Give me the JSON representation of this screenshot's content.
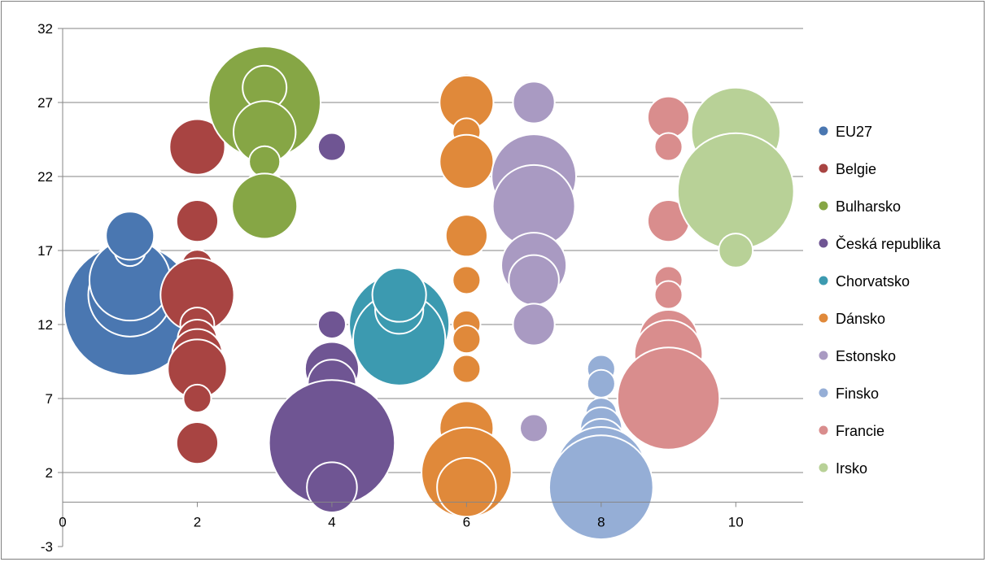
{
  "chart_data": {
    "type": "bubble",
    "xlim": [
      0,
      11
    ],
    "ylim": [
      -3,
      32
    ],
    "x_ticks": [
      0,
      2,
      4,
      6,
      8,
      10
    ],
    "y_ticks": [
      -3,
      2,
      7,
      12,
      17,
      22,
      27,
      32
    ],
    "x_tick_labels": [
      "0",
      "2",
      "4",
      "6",
      "8",
      "10"
    ],
    "y_tick_labels": [
      "-3",
      "2",
      "7",
      "12",
      "17",
      "22",
      "27",
      "32"
    ],
    "horizontal_gridlines": true,
    "legend_position": "right",
    "series": [
      {
        "name": "EU27",
        "color": "#4a77b1",
        "points": [
          {
            "x": 1,
            "y": 13,
            "size": 9.0
          },
          {
            "x": 1,
            "y": 14,
            "size": 3.6
          },
          {
            "x": 1,
            "y": 15,
            "size": 3.4
          },
          {
            "x": 1,
            "y": 17,
            "size": 0.5
          },
          {
            "x": 1,
            "y": 18,
            "size": 1.2
          }
        ]
      },
      {
        "name": "Belgie",
        "color": "#a84442",
        "points": [
          {
            "x": 2,
            "y": 24,
            "size": 1.6
          },
          {
            "x": 2,
            "y": 19,
            "size": 0.9
          },
          {
            "x": 2,
            "y": 16,
            "size": 0.5
          },
          {
            "x": 2,
            "y": 14,
            "size": 2.8
          },
          {
            "x": 2,
            "y": 12,
            "size": 0.6
          },
          {
            "x": 2,
            "y": 11,
            "size": 0.8
          },
          {
            "x": 2,
            "y": 10,
            "size": 1.3
          },
          {
            "x": 2,
            "y": 9,
            "size": 1.8
          },
          {
            "x": 2,
            "y": 7,
            "size": 0.4
          },
          {
            "x": 2,
            "y": 4,
            "size": 0.9
          }
        ]
      },
      {
        "name": "Bulharsko",
        "color": "#86a645",
        "points": [
          {
            "x": 3,
            "y": 27,
            "size": 6.5
          },
          {
            "x": 3,
            "y": 28,
            "size": 1.0
          },
          {
            "x": 3,
            "y": 25,
            "size": 2.0
          },
          {
            "x": 3,
            "y": 23,
            "size": 0.5
          },
          {
            "x": 3,
            "y": 21,
            "size": 0.5
          },
          {
            "x": 3,
            "y": 20,
            "size": 2.2
          }
        ]
      },
      {
        "name": "Česká republika",
        "color": "#6f5593",
        "points": [
          {
            "x": 4,
            "y": 24,
            "size": 0.4
          },
          {
            "x": 4,
            "y": 12,
            "size": 0.4
          },
          {
            "x": 4,
            "y": 9,
            "size": 1.5
          },
          {
            "x": 4,
            "y": 8,
            "size": 1.2
          },
          {
            "x": 4,
            "y": 6,
            "size": 1.0
          },
          {
            "x": 4,
            "y": 4,
            "size": 8.2
          },
          {
            "x": 4,
            "y": 1,
            "size": 1.3
          }
        ]
      },
      {
        "name": "Chorvatsko",
        "color": "#3c9ab0",
        "points": [
          {
            "x": 5,
            "y": 12,
            "size": 5.2
          },
          {
            "x": 5,
            "y": 11,
            "size": 4.4
          },
          {
            "x": 5,
            "y": 13,
            "size": 1.2
          },
          {
            "x": 5,
            "y": 14,
            "size": 1.5
          }
        ]
      },
      {
        "name": "Dánsko",
        "color": "#e0893a",
        "points": [
          {
            "x": 6,
            "y": 28,
            "size": 0.4
          },
          {
            "x": 6,
            "y": 27,
            "size": 1.5
          },
          {
            "x": 6,
            "y": 25,
            "size": 0.4
          },
          {
            "x": 6,
            "y": 23,
            "size": 1.5
          },
          {
            "x": 6,
            "y": 18,
            "size": 0.9
          },
          {
            "x": 6,
            "y": 15,
            "size": 0.4
          },
          {
            "x": 6,
            "y": 12,
            "size": 0.4
          },
          {
            "x": 6,
            "y": 11,
            "size": 0.4
          },
          {
            "x": 6,
            "y": 9,
            "size": 0.4
          },
          {
            "x": 6,
            "y": 5,
            "size": 1.5
          },
          {
            "x": 6,
            "y": 2,
            "size": 4.2
          },
          {
            "x": 6,
            "y": 1,
            "size": 1.8
          }
        ]
      },
      {
        "name": "Estonsko",
        "color": "#a99ac2",
        "points": [
          {
            "x": 7,
            "y": 27,
            "size": 0.9
          },
          {
            "x": 7,
            "y": 23,
            "size": 1.0
          },
          {
            "x": 7,
            "y": 22,
            "size": 3.7
          },
          {
            "x": 7,
            "y": 20,
            "size": 3.5
          },
          {
            "x": 7,
            "y": 16,
            "size": 2.2
          },
          {
            "x": 7,
            "y": 15,
            "size": 1.3
          },
          {
            "x": 7,
            "y": 12,
            "size": 0.9
          },
          {
            "x": 7,
            "y": 5,
            "size": 0.4
          }
        ]
      },
      {
        "name": "Finsko",
        "color": "#95aed6",
        "points": [
          {
            "x": 8,
            "y": 9,
            "size": 0.4
          },
          {
            "x": 8,
            "y": 8,
            "size": 0.4
          },
          {
            "x": 8,
            "y": 6,
            "size": 0.5
          },
          {
            "x": 8,
            "y": 5,
            "size": 0.9
          },
          {
            "x": 8,
            "y": 4,
            "size": 1.2
          },
          {
            "x": 8,
            "y": 3,
            "size": 1.6
          },
          {
            "x": 8,
            "y": 2,
            "size": 4.3
          },
          {
            "x": 8,
            "y": 1,
            "size": 5.6
          }
        ]
      },
      {
        "name": "Francie",
        "color": "#d98d8d",
        "points": [
          {
            "x": 9,
            "y": 26,
            "size": 0.9
          },
          {
            "x": 9,
            "y": 24,
            "size": 0.4
          },
          {
            "x": 9,
            "y": 19,
            "size": 0.9
          },
          {
            "x": 9,
            "y": 15,
            "size": 0.4
          },
          {
            "x": 9,
            "y": 14,
            "size": 0.4
          },
          {
            "x": 9,
            "y": 11,
            "size": 1.8
          },
          {
            "x": 9,
            "y": 10,
            "size": 2.4
          },
          {
            "x": 9,
            "y": 8,
            "size": 2.6
          },
          {
            "x": 9,
            "y": 7,
            "size": 5.4
          }
        ]
      },
      {
        "name": "Irsko",
        "color": "#b8d197",
        "points": [
          {
            "x": 10,
            "y": 25,
            "size": 4.1
          },
          {
            "x": 10,
            "y": 22,
            "size": 0.7
          },
          {
            "x": 10,
            "y": 21,
            "size": 7.0
          },
          {
            "x": 10,
            "y": 17,
            "size": 0.6
          }
        ]
      }
    ]
  }
}
